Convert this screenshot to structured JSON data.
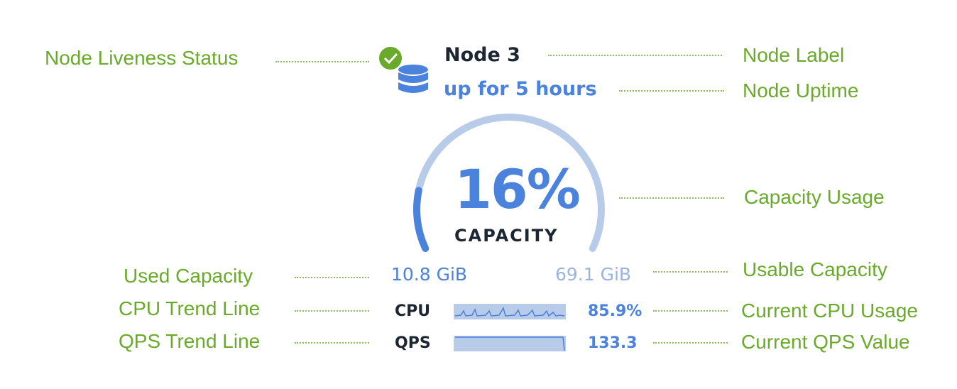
{
  "node": {
    "label": "Node 3",
    "uptime": "up for 5 hours",
    "liveness_icon": "check-circle-icon",
    "node_icon": "database-icon",
    "capacity": {
      "percent": 16,
      "percent_label": "16%",
      "label": "CAPACITY",
      "used": "10.8 GiB",
      "usable": "69.1 GiB"
    },
    "cpu": {
      "label": "CPU",
      "value": "85.9%"
    },
    "qps": {
      "label": "QPS",
      "value": "133.3"
    }
  },
  "annotations": {
    "liveness": "Node Liveness Status",
    "label": "Node Label",
    "uptime": "Node Uptime",
    "capacity_usage": "Capacity Usage",
    "used_capacity": "Used Capacity",
    "usable_capacity": "Usable Capacity",
    "cpu_trend": "CPU Trend Line",
    "cpu_current": "Current CPU Usage",
    "qps_trend": "QPS Trend Line",
    "qps_current": "Current QPS Value"
  },
  "colors": {
    "accent": "#4a82dc",
    "track": "#b8cbe9",
    "annotation": "#6aaa2a",
    "healthy": "#6aaa2a"
  }
}
